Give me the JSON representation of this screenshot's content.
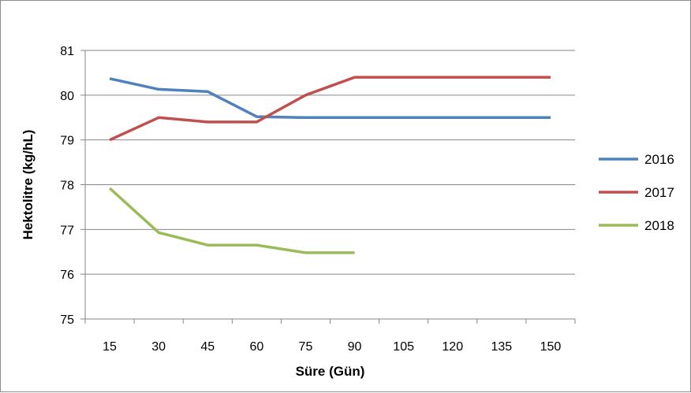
{
  "chart_data": {
    "type": "line",
    "x": [
      15,
      30,
      45,
      60,
      75,
      90,
      105,
      120,
      135,
      150
    ],
    "categories": [
      "15",
      "30",
      "45",
      "60",
      "75",
      "90",
      "105",
      "120",
      "135",
      "150"
    ],
    "series": [
      {
        "name": "2016",
        "color": "#4f81bd",
        "values": [
          80.37,
          80.13,
          80.08,
          79.52,
          79.5,
          79.5,
          79.5,
          79.5,
          79.5,
          79.5
        ]
      },
      {
        "name": "2017",
        "color": "#c0504d",
        "values": [
          79.0,
          79.5,
          79.4,
          79.4,
          80.0,
          80.4,
          80.4,
          80.4,
          80.4,
          80.4
        ]
      },
      {
        "name": "2018",
        "color": "#9bbb59",
        "values": [
          77.92,
          76.93,
          76.65,
          76.65,
          76.48,
          76.48,
          null,
          null,
          null,
          null
        ]
      }
    ],
    "xlabel": "Süre (Gün)",
    "ylabel": "Hektolitre (kg/hL)",
    "ylim": [
      75,
      81
    ],
    "yticks": [
      "75",
      "76",
      "77",
      "78",
      "79",
      "80",
      "81"
    ],
    "grid": true,
    "legend_position": "right"
  }
}
